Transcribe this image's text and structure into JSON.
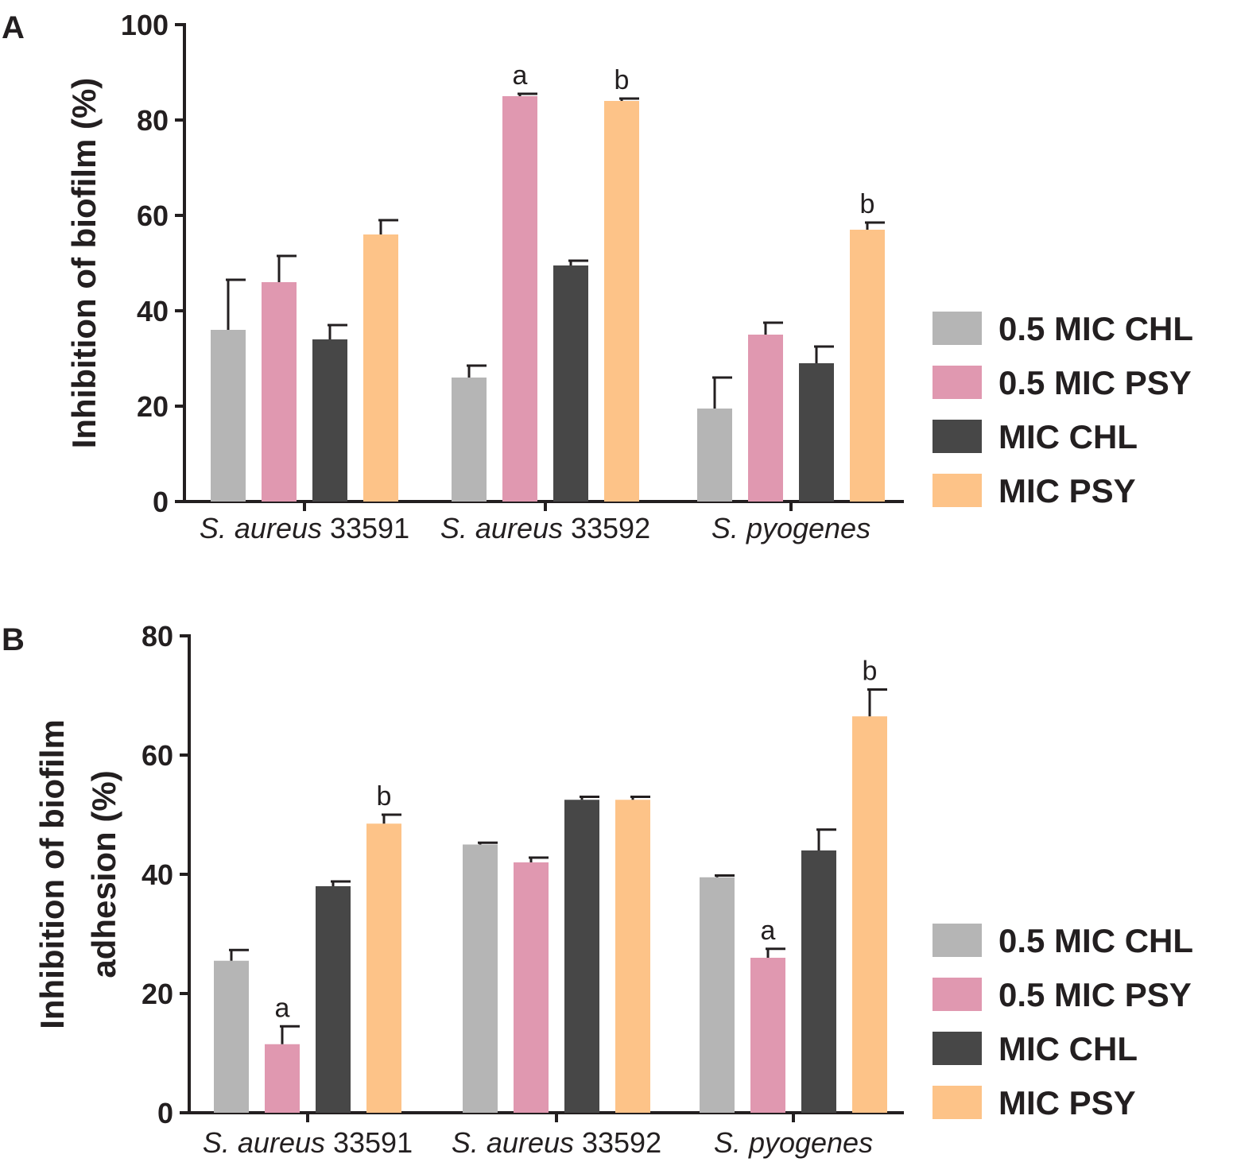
{
  "chart_data": [
    {
      "panel": "A",
      "type": "bar",
      "ylabel_lines": [
        "Inhibition of biofilm (%)"
      ],
      "ylim": [
        0,
        100
      ],
      "yticks": [
        0,
        20,
        40,
        60,
        80,
        100
      ],
      "categories": [
        {
          "italic": "S. aureus",
          "plain": " 33591"
        },
        {
          "italic": "S. aureus",
          "plain": " 33592"
        },
        {
          "italic": "S. pyogenes",
          "plain": ""
        }
      ],
      "series": [
        {
          "name": "0.5 MIC CHL",
          "color": "#b5b5b5",
          "values": [
            36,
            26,
            19.5
          ],
          "errors": [
            10.5,
            2.5,
            6.5
          ],
          "annotations": [
            "",
            "",
            ""
          ]
        },
        {
          "name": "0.5 MIC PSY",
          "color": "#e098b0",
          "values": [
            46,
            85,
            35
          ],
          "errors": [
            5.5,
            0.5,
            2.5
          ],
          "annotations": [
            "",
            "a",
            ""
          ]
        },
        {
          "name": "MIC CHL",
          "color": "#474747",
          "values": [
            34,
            49.5,
            29
          ],
          "errors": [
            3,
            1,
            3.5
          ],
          "annotations": [
            "",
            "",
            ""
          ]
        },
        {
          "name": "MIC PSY",
          "color": "#fdc388",
          "values": [
            56,
            84,
            57
          ],
          "errors": [
            3,
            0.5,
            1.5
          ],
          "annotations": [
            "",
            "b",
            "b"
          ]
        }
      ]
    },
    {
      "panel": "B",
      "type": "bar",
      "ylabel_lines": [
        "Inhibition of biofilm",
        "adhesion (%)"
      ],
      "ylim": [
        0,
        80
      ],
      "yticks": [
        0,
        20,
        40,
        60,
        80
      ],
      "categories": [
        {
          "italic": "S. aureus",
          "plain": " 33591"
        },
        {
          "italic": "S. aureus",
          "plain": " 33592"
        },
        {
          "italic": "S. pyogenes",
          "plain": ""
        }
      ],
      "series": [
        {
          "name": "0.5 MIC CHL",
          "color": "#b5b5b5",
          "values": [
            25.5,
            45,
            39.5
          ],
          "errors": [
            1.8,
            0.3,
            0.3
          ],
          "annotations": [
            "",
            "",
            ""
          ]
        },
        {
          "name": "0.5 MIC PSY",
          "color": "#e098b0",
          "values": [
            11.5,
            42,
            26
          ],
          "errors": [
            3,
            0.8,
            1.5
          ],
          "annotations": [
            "a",
            "",
            "a"
          ]
        },
        {
          "name": "MIC CHL",
          "color": "#474747",
          "values": [
            38,
            52.5,
            44
          ],
          "errors": [
            0.8,
            0.5,
            3.5
          ],
          "annotations": [
            "",
            "",
            ""
          ]
        },
        {
          "name": "MIC PSY",
          "color": "#fdc388",
          "values": [
            48.5,
            52.5,
            66.5
          ],
          "errors": [
            1.5,
            0.5,
            4.5
          ],
          "annotations": [
            "b",
            "",
            "b"
          ]
        }
      ]
    }
  ]
}
